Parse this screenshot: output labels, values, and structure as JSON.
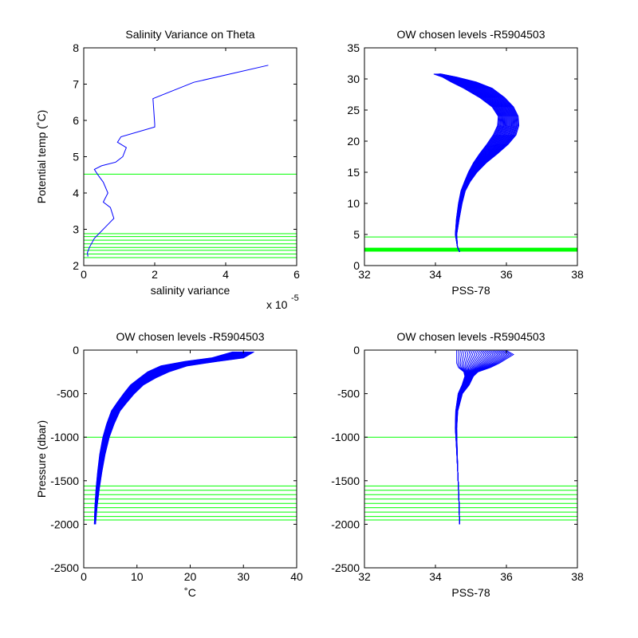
{
  "figure": {
    "background": "#ffffff"
  },
  "colors": {
    "data": "#0000ff",
    "levels": "#00ff00",
    "axes": "#000000"
  },
  "chart_data": [
    {
      "id": "ax1",
      "type": "line",
      "title": "Salinity Variance on Theta",
      "xlabel": "salinity variance",
      "ylabel": "Potential temp (˚C)",
      "xlim": [
        0,
        6
      ],
      "ylim": [
        2,
        8
      ],
      "xticks": [
        0,
        2,
        4,
        6
      ],
      "yticks": [
        2,
        3,
        4,
        5,
        6,
        7,
        8
      ],
      "x_exponent_label": "x 10",
      "x_exponent_power": "-5",
      "series": [
        {
          "style": "line",
          "x": [
            0.12,
            0.1,
            0.16,
            0.3,
            0.6,
            0.85,
            0.75,
            0.55,
            0.68,
            0.55,
            0.4,
            0.3,
            0.5,
            0.9,
            1.1,
            1.2,
            0.95,
            1.05,
            2.0,
            2.0,
            1.95,
            3.1,
            5.2
          ],
          "y": [
            2.25,
            2.35,
            2.5,
            2.75,
            3.05,
            3.3,
            3.6,
            3.75,
            4.0,
            4.3,
            4.5,
            4.65,
            4.75,
            4.85,
            5.0,
            5.25,
            5.4,
            5.55,
            5.82,
            5.9,
            6.6,
            7.05,
            7.52
          ]
        }
      ],
      "hlines": [
        4.52,
        2.88,
        2.8,
        2.7,
        2.6,
        2.5,
        2.42,
        2.32,
        2.22
      ]
    },
    {
      "id": "ax2",
      "type": "line",
      "title": "OW chosen levels -R5904503",
      "xlabel": "PSS-78",
      "ylabel": "",
      "xlim": [
        32,
        38
      ],
      "ylim": [
        0,
        35
      ],
      "xticks": [
        32,
        34,
        36,
        38
      ],
      "yticks": [
        0,
        5,
        10,
        15,
        20,
        25,
        30,
        35
      ],
      "series": [
        {
          "style": "profile-bundle",
          "x": [
            34.68,
            34.62,
            34.58,
            34.63,
            34.7,
            34.78,
            34.9,
            35.05,
            35.25,
            35.5,
            35.75,
            35.95,
            36.05,
            36.05,
            35.9,
            35.6,
            35.2,
            34.8,
            34.4,
            34.05
          ],
          "y": [
            2.2,
            3.0,
            5.0,
            7.5,
            10.0,
            12.0,
            13.5,
            15.0,
            16.5,
            18.0,
            19.5,
            21.0,
            22.5,
            24.0,
            25.5,
            27.0,
            28.5,
            29.5,
            30.3,
            30.8
          ],
          "spread_x": [
            0.0,
            0.0,
            0.02,
            0.04,
            0.05,
            0.06,
            0.08,
            0.12,
            0.18,
            0.25,
            0.3,
            0.32,
            0.3,
            0.28,
            0.3,
            0.35,
            0.4,
            0.35,
            0.2,
            0.1
          ]
        }
      ],
      "hlines": [
        4.6,
        2.8,
        2.7,
        2.6,
        2.5,
        2.4,
        2.3
      ]
    },
    {
      "id": "ax3",
      "type": "line",
      "title": "OW chosen levels -R5904503",
      "xlabel": "˚C",
      "ylabel": "Pressure (dbar)",
      "xlim": [
        0,
        40
      ],
      "ylim": [
        -2500,
        0
      ],
      "xticks": [
        0,
        10,
        20,
        30,
        40
      ],
      "yticks": [
        -2500,
        -2000,
        -1500,
        -1000,
        -500,
        0
      ],
      "series": [
        {
          "style": "profile-bundle",
          "x": [
            2.1,
            2.3,
            2.6,
            3.0,
            3.5,
            4.2,
            5.0,
            6.0,
            7.2,
            8.5,
            10.0,
            12.0,
            14.0,
            17.0,
            22.0,
            27.0,
            30.0
          ],
          "y": [
            -2000,
            -1800,
            -1600,
            -1400,
            -1200,
            -1000,
            -850,
            -700,
            -600,
            -500,
            -400,
            -320,
            -250,
            -180,
            -130,
            -90,
            -20
          ],
          "spread_x": [
            0.1,
            0.2,
            0.3,
            0.4,
            0.5,
            0.6,
            0.7,
            0.8,
            0.9,
            1.0,
            1.2,
            1.5,
            2.0,
            2.5,
            3.0,
            3.0,
            2.0
          ]
        }
      ],
      "hlines": [
        -1000,
        -1560,
        -1610,
        -1660,
        -1710,
        -1760,
        -1810,
        -1860,
        -1910,
        -1950
      ]
    },
    {
      "id": "ax4",
      "type": "line",
      "title": "OW chosen levels -R5904503",
      "xlabel": "PSS-78",
      "ylabel": "",
      "xlim": [
        32,
        38
      ],
      "ylim": [
        -2500,
        0
      ],
      "xticks": [
        32,
        34,
        36,
        38
      ],
      "yticks": [
        -2500,
        -2000,
        -1500,
        -1000,
        -500,
        0
      ],
      "series": [
        {
          "style": "profile-bundle",
          "x": [
            34.68,
            34.66,
            34.63,
            34.6,
            34.58,
            34.6,
            34.7,
            34.85,
            34.95,
            35.0,
            35.1,
            35.2,
            35.3,
            35.4,
            35.3
          ],
          "y": [
            -2000,
            -1700,
            -1400,
            -1100,
            -900,
            -700,
            -500,
            -400,
            -300,
            -250,
            -200,
            -150,
            -100,
            -50,
            -5
          ],
          "spread_x": [
            0.0,
            0.0,
            0.0,
            0.01,
            0.02,
            0.03,
            0.06,
            0.1,
            0.12,
            0.2,
            0.45,
            0.6,
            0.7,
            0.8,
            0.7
          ]
        }
      ],
      "hlines": [
        -1000,
        -1560,
        -1610,
        -1660,
        -1710,
        -1760,
        -1810,
        -1860,
        -1910,
        -1950
      ]
    }
  ]
}
